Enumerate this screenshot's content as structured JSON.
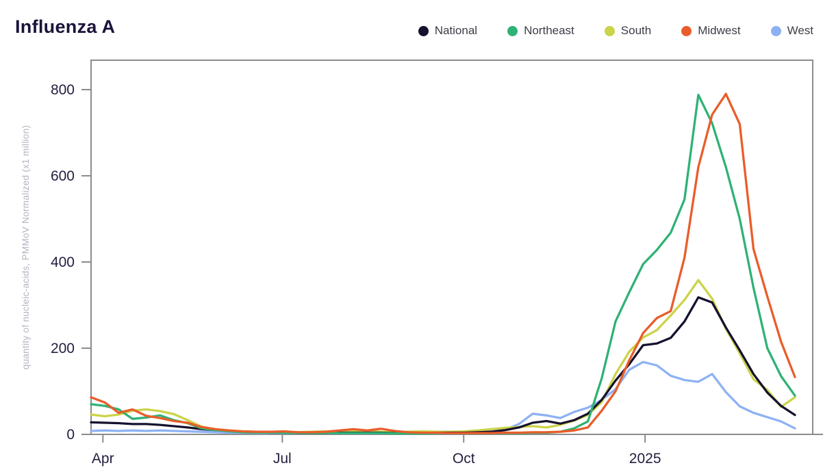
{
  "page": {
    "title": "Influenza A"
  },
  "colors": {
    "title_text": "#1b1339",
    "tick_text": "#23203f",
    "axis_line": "#8b8b8b",
    "ylabel_text": "#b5b4c3",
    "legend_text": "#3c3c46",
    "background": "#ffffff"
  },
  "chart_data": {
    "type": "line",
    "title": "Influenza A",
    "xlabel": "",
    "ylabel": "quantity of nucleic-acids, PMMoV Normalized (x1 million)",
    "grid": false,
    "legend_position": "top-right",
    "x_unit": "days since 2024-03-26, weekly samples",
    "x_days": [
      0,
      7,
      14,
      21,
      28,
      35,
      42,
      49,
      56,
      63,
      70,
      77,
      84,
      91,
      98,
      105,
      112,
      119,
      126,
      133,
      140,
      147,
      154,
      161,
      168,
      175,
      182,
      189,
      196,
      203,
      210,
      217,
      224,
      231,
      238,
      245,
      252,
      259,
      266,
      273,
      280,
      287,
      294,
      301,
      308,
      315,
      322,
      329,
      336,
      343,
      350,
      357
    ],
    "xticks": [
      {
        "label": "Apr",
        "day": 6
      },
      {
        "label": "Jul",
        "day": 97
      },
      {
        "label": "Oct",
        "day": 189
      },
      {
        "label": "2025",
        "day": 281
      }
    ],
    "yticks": [
      0,
      200,
      400,
      600,
      800
    ],
    "ylim": [
      0,
      870
    ],
    "series": [
      {
        "name": "National",
        "color": "#16112e",
        "values": [
          28,
          27,
          26,
          24,
          24,
          22,
          19,
          16,
          12,
          10,
          8,
          6,
          5,
          4,
          4,
          3,
          3,
          3,
          4,
          4,
          4,
          4,
          3,
          3,
          3,
          4,
          4,
          4,
          5,
          6,
          10,
          16,
          27,
          31,
          25,
          33,
          48,
          80,
          125,
          163,
          207,
          211,
          224,
          262,
          318,
          306,
          248,
          195,
          140,
          97,
          66,
          45
        ]
      },
      {
        "name": "Northeast",
        "color": "#2fb275",
        "values": [
          70,
          66,
          58,
          36,
          39,
          44,
          33,
          26,
          14,
          10,
          7,
          5,
          4,
          4,
          4,
          3,
          3,
          3,
          3,
          3,
          3,
          3,
          2,
          2,
          2,
          3,
          3,
          3,
          3,
          3,
          3,
          3,
          4,
          4,
          6,
          14,
          30,
          130,
          262,
          330,
          395,
          428,
          468,
          545,
          788,
          722,
          620,
          500,
          340,
          200,
          135,
          90
        ]
      },
      {
        "name": "South",
        "color": "#cbd348",
        "values": [
          46,
          42,
          46,
          55,
          58,
          54,
          47,
          33,
          18,
          12,
          9,
          7,
          6,
          5,
          7,
          5,
          6,
          7,
          6,
          8,
          7,
          6,
          5,
          6,
          7,
          6,
          6,
          7,
          9,
          12,
          15,
          17,
          19,
          16,
          22,
          32,
          45,
          75,
          140,
          192,
          225,
          242,
          276,
          312,
          358,
          315,
          245,
          188,
          128,
          103,
          64,
          86
        ]
      },
      {
        "name": "Midwest",
        "color": "#e95d2a",
        "values": [
          86,
          74,
          50,
          58,
          43,
          38,
          31,
          27,
          17,
          12,
          9,
          7,
          6,
          6,
          7,
          5,
          5,
          6,
          9,
          12,
          9,
          13,
          8,
          5,
          4,
          4,
          3,
          3,
          3,
          3,
          4,
          4,
          5,
          5,
          6,
          9,
          16,
          55,
          100,
          172,
          235,
          270,
          286,
          410,
          620,
          742,
          790,
          720,
          430,
          320,
          215,
          133
        ]
      },
      {
        "name": "West",
        "color": "#8db2f3",
        "values": [
          8,
          9,
          8,
          9,
          8,
          9,
          8,
          7,
          6,
          5,
          4,
          4,
          3,
          3,
          3,
          3,
          3,
          3,
          3,
          3,
          3,
          3,
          3,
          3,
          3,
          3,
          4,
          4,
          5,
          7,
          11,
          24,
          48,
          44,
          38,
          52,
          62,
          80,
          105,
          150,
          168,
          160,
          136,
          126,
          122,
          140,
          98,
          65,
          50,
          40,
          30,
          14
        ]
      }
    ],
    "draw_order": [
      "West",
      "South",
      "National",
      "Northeast",
      "Midwest"
    ]
  }
}
